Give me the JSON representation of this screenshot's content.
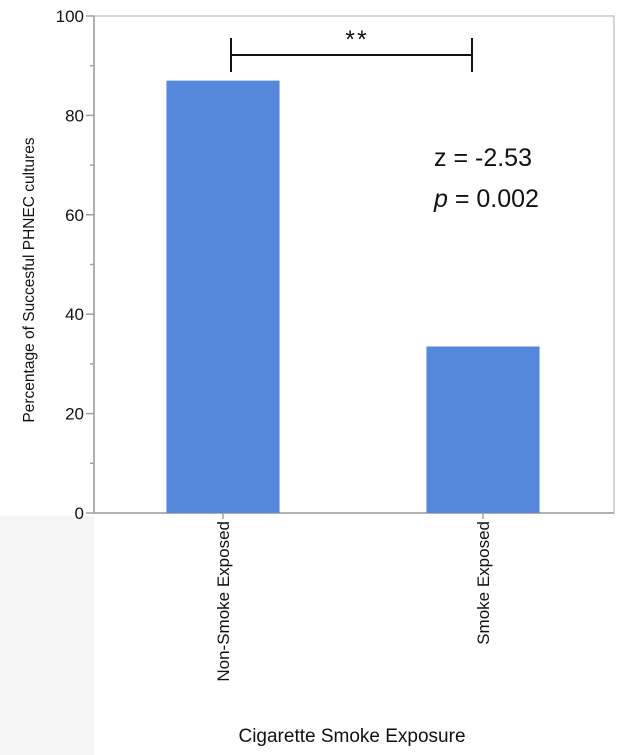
{
  "chart_data": {
    "type": "bar",
    "categories": [
      "Non-Smoke Exposed",
      "Smoke Exposed"
    ],
    "values": [
      87,
      33.5
    ],
    "xlabel": "Cigarette Smoke Exposure",
    "ylabel": "Percentage of Succesful PHNEC cultures",
    "ylim": [
      0,
      100
    ],
    "yticks": [
      "0",
      "20",
      "40",
      "60",
      "80",
      "100"
    ],
    "grid": false,
    "bar_color": "#5588DD",
    "annotations": {
      "significance": "**",
      "z_line": "z = -2.53",
      "p_symbol": "p",
      "p_rest": " = 0.002"
    }
  }
}
